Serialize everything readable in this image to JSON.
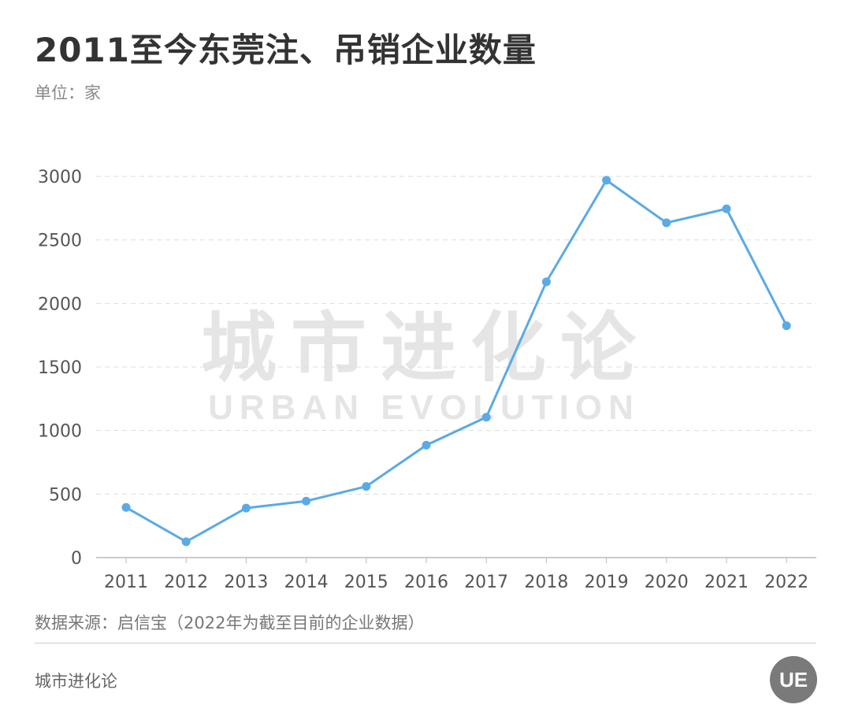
{
  "header": {
    "title": "2011至今东莞注、吊销企业数量",
    "unit": "单位：家"
  },
  "footer": {
    "source": "数据来源：启信宝（2022年为截至目前的企业数据）",
    "brand": "城市进化论",
    "logo_text": "UE"
  },
  "watermark": {
    "cn": "城市进化论",
    "en": "URBAN EVOLUTION"
  },
  "colors": {
    "line": "#5aaae6",
    "grid": "#dddddd",
    "title": "#333333"
  },
  "chart_data": {
    "type": "line",
    "title": "2011至今东莞注、吊销企业数量",
    "ylabel": "单位：家",
    "xlabel": "",
    "ylim": [
      0,
      3000
    ],
    "yticks": [
      0,
      500,
      1000,
      1500,
      2000,
      2500,
      3000
    ],
    "grid": true,
    "categories": [
      "2011",
      "2012",
      "2013",
      "2014",
      "2015",
      "2016",
      "2017",
      "2018",
      "2019",
      "2020",
      "2021",
      "2022"
    ],
    "series": [
      {
        "values": [
          395,
          125,
          390,
          445,
          560,
          885,
          1105,
          2170,
          2970,
          2635,
          2745,
          1825
        ]
      }
    ]
  }
}
